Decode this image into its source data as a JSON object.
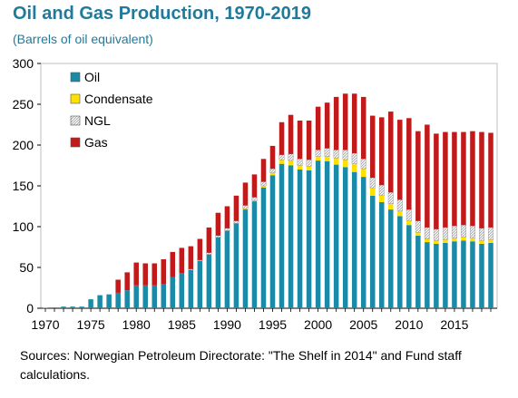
{
  "title": "Oil and Gas Production, 1970-2019",
  "subtitle": "(Barrels of oil equivalent)",
  "source": "Sources: Norwegian Petroleum Directorate: \"The Shelf in 2014\" and Fund staff calculations.",
  "chart_data": {
    "type": "bar",
    "stacked": true,
    "title": "Oil and Gas Production, 1970-2019",
    "subtitle": "(Barrels of oil equivalent)",
    "xlabel": "",
    "ylabel": "",
    "ylim": [
      0,
      300
    ],
    "yticks": [
      0,
      50,
      100,
      150,
      200,
      250,
      300
    ],
    "xtick_labels": [
      "1970",
      "1975",
      "1980",
      "1985",
      "1990",
      "1995",
      "2000",
      "2005",
      "2010",
      "2015"
    ],
    "legend_position": "top-left",
    "grid": false,
    "categories": [
      "1970",
      "1971",
      "1972",
      "1973",
      "1974",
      "1975",
      "1976",
      "1977",
      "1978",
      "1979",
      "1980",
      "1981",
      "1982",
      "1983",
      "1984",
      "1985",
      "1986",
      "1987",
      "1988",
      "1989",
      "1990",
      "1991",
      "1992",
      "1993",
      "1994",
      "1995",
      "1996",
      "1997",
      "1998",
      "1999",
      "2000",
      "2001",
      "2002",
      "2003",
      "2004",
      "2005",
      "2006",
      "2007",
      "2008",
      "2009",
      "2010",
      "2011",
      "2012",
      "2013",
      "2014",
      "2015",
      "2016",
      "2017",
      "2018",
      "2019"
    ],
    "series": [
      {
        "name": "Oil",
        "color": "#1b8aa6",
        "values": [
          0.5,
          1,
          2,
          2,
          2,
          11,
          16,
          17,
          19,
          22,
          28,
          28,
          28,
          30,
          38,
          43,
          47,
          58,
          66,
          87,
          95,
          104,
          121,
          131,
          148,
          163,
          177,
          175,
          170,
          169,
          181,
          180,
          176,
          173,
          167,
          161,
          138,
          130,
          121,
          113,
          102,
          89,
          81,
          79,
          80,
          82,
          83,
          82,
          79,
          80
        ]
      },
      {
        "name": "Condensate",
        "color": "#ffe000",
        "values": [
          0,
          0,
          0,
          0,
          0,
          0,
          0,
          0,
          0,
          0,
          0,
          0,
          0,
          0,
          0,
          0,
          0,
          0,
          0,
          0,
          0,
          0,
          1,
          1,
          2,
          3,
          5,
          6,
          5,
          5,
          5,
          6,
          8,
          9,
          10,
          10,
          9,
          8,
          7,
          6,
          5,
          4,
          4,
          4,
          4,
          4,
          4,
          4,
          4,
          4
        ]
      },
      {
        "name": "NGL",
        "color": "#f2f2f2",
        "values": [
          0,
          0,
          0,
          0,
          0,
          0,
          0,
          0,
          0,
          0,
          0,
          0,
          0,
          0,
          0,
          0,
          1,
          1,
          2,
          2,
          3,
          3,
          4,
          4,
          5,
          5,
          6,
          8,
          8,
          8,
          8,
          10,
          10,
          12,
          13,
          12,
          13,
          13,
          14,
          14,
          14,
          14,
          14,
          14,
          15,
          15,
          15,
          15,
          15,
          15
        ]
      },
      {
        "name": "Gas",
        "color": "#c01a1a",
        "values": [
          0,
          0,
          0,
          0,
          0,
          0,
          0,
          0,
          16,
          22,
          28,
          27,
          27,
          30,
          31,
          31,
          28,
          26,
          31,
          28,
          27,
          31,
          28,
          28,
          28,
          28,
          40,
          48,
          47,
          48,
          53,
          56,
          65,
          69,
          73,
          76,
          76,
          83,
          99,
          98,
          112,
          110,
          126,
          117,
          117,
          115,
          114,
          116,
          118,
          116
        ]
      }
    ]
  }
}
